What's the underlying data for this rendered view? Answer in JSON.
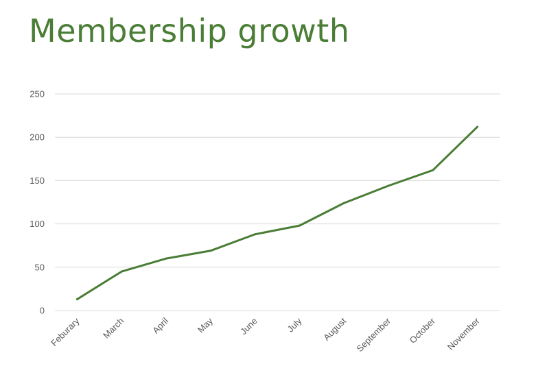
{
  "chart_data": {
    "type": "line",
    "title": "Membership growth",
    "xlabel": "",
    "ylabel": "",
    "categories": [
      "Feburary",
      "March",
      "April",
      "May",
      "June",
      "July",
      "August",
      "September",
      "October",
      "November"
    ],
    "series": [
      {
        "values": [
          13,
          45,
          60,
          69,
          88,
          98,
          124,
          144,
          162,
          212
        ]
      }
    ],
    "ylim": [
      0,
      250
    ],
    "yticks": [
      0,
      50,
      100,
      150,
      200,
      250
    ],
    "grid": true,
    "legend": "none",
    "colors": {
      "series": "#4a7d35",
      "title": "#4a7d35",
      "grid": "#d9d9d9",
      "ticks": "#595959"
    }
  }
}
